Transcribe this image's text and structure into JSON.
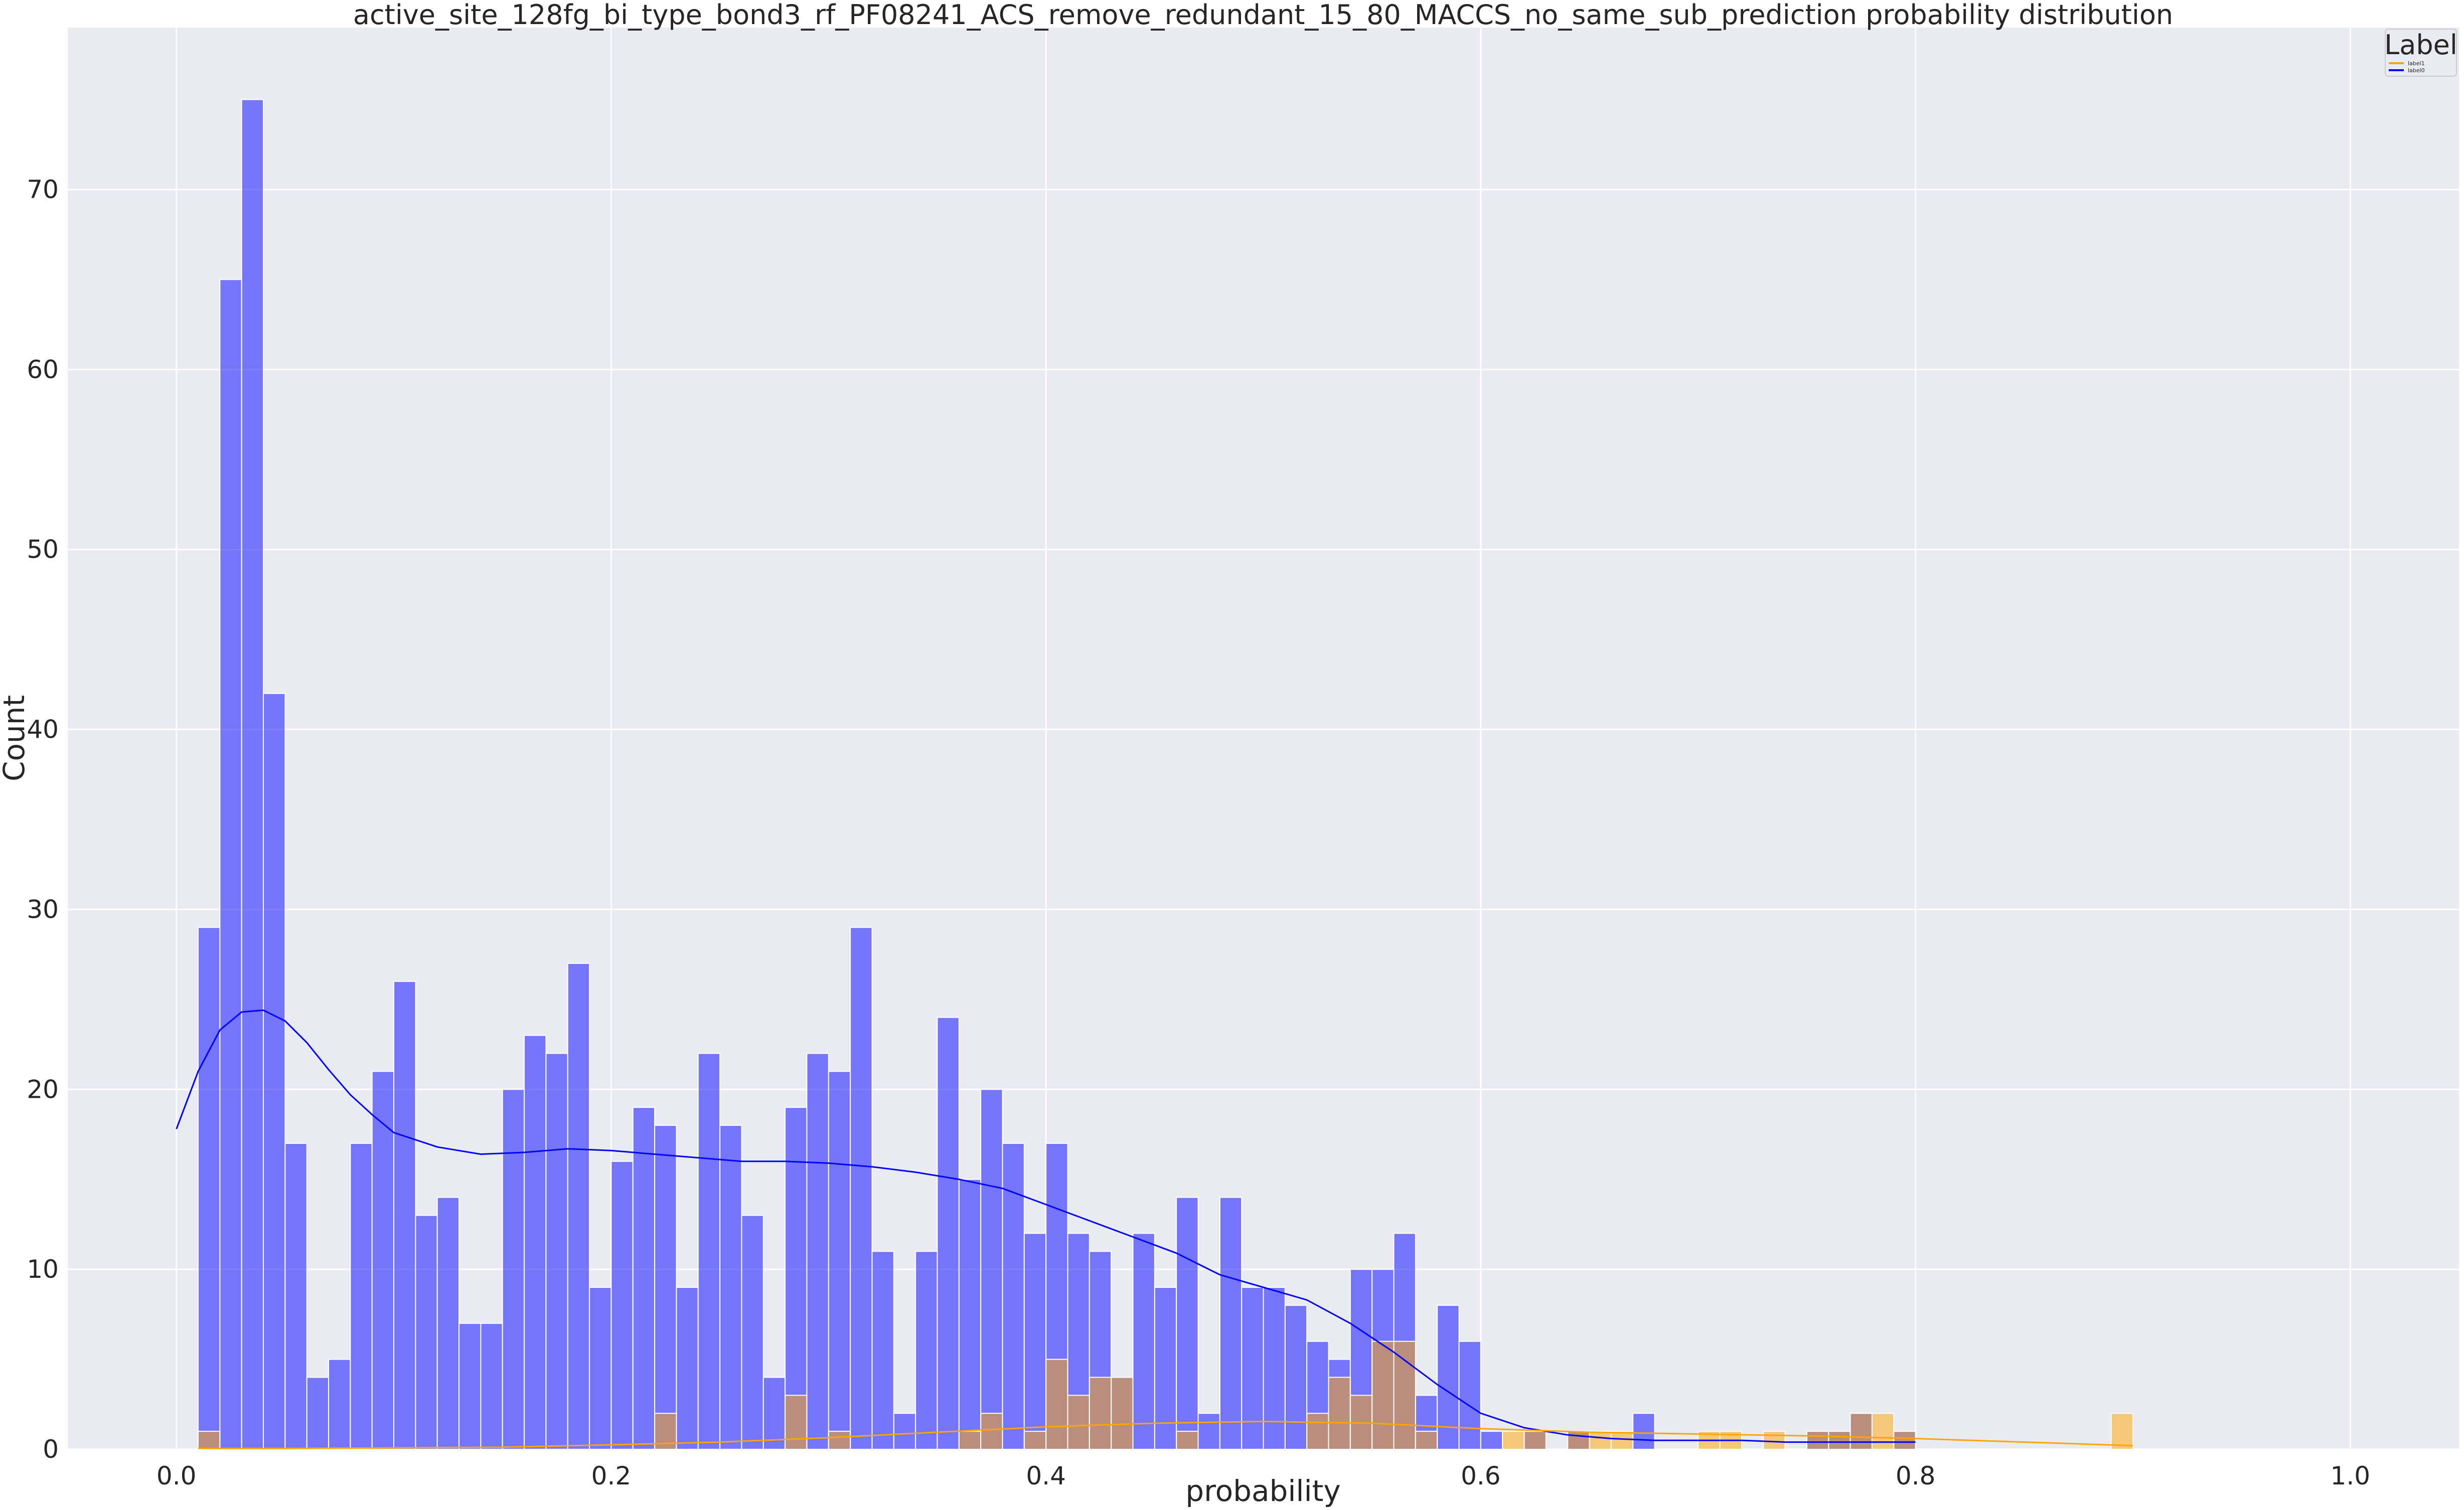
{
  "chart_data": {
    "type": "bar",
    "title": "active_site_128fg_bi_type_bond3_rf_PF08241_ACS_remove_redundant_15_80_MACCS_no_same_sub_prediction probability distribution",
    "xlabel": "probability",
    "ylabel": "Count",
    "xlim": [
      -0.05,
      1.05
    ],
    "ylim": [
      0,
      79
    ],
    "xticks": [
      0.0,
      0.2,
      0.4,
      0.6,
      0.8,
      1.0
    ],
    "xtick_labels": [
      "0.0",
      "0.2",
      "0.4",
      "0.6",
      "0.8",
      "1.0"
    ],
    "yticks": [
      0,
      10,
      20,
      30,
      40,
      50,
      60,
      70
    ],
    "ytick_labels": [
      "0",
      "10",
      "20",
      "30",
      "40",
      "50",
      "60",
      "70"
    ],
    "grid": true,
    "legend": {
      "title": "Label",
      "placement": "top-right",
      "entries": [
        "label1",
        "label0"
      ]
    },
    "bin_start": 0.01,
    "bin_width": 0.01,
    "series": [
      {
        "name": "label0",
        "color": "#0000ff",
        "opacity": 0.5,
        "values": [
          29,
          65,
          75,
          42,
          17,
          4,
          5,
          17,
          21,
          26,
          13,
          14,
          7,
          7,
          20,
          23,
          22,
          27,
          9,
          16,
          19,
          18,
          9,
          22,
          18,
          13,
          4,
          19,
          22,
          21,
          29,
          11,
          2,
          11,
          24,
          15,
          20,
          17,
          12,
          17,
          12,
          11,
          4,
          12,
          9,
          14,
          2,
          14,
          9,
          9,
          8,
          6,
          5,
          10,
          10,
          12,
          3,
          8,
          6,
          1,
          0,
          1,
          0,
          1,
          0,
          0,
          2,
          0,
          0,
          0,
          0,
          0,
          0,
          0,
          1,
          1,
          2,
          0,
          1
        ]
      },
      {
        "name": "label1",
        "color": "#ffa500",
        "opacity": 0.5,
        "values": [
          1,
          0,
          0,
          0,
          0,
          0,
          0,
          0,
          0,
          0,
          0,
          0,
          0,
          0,
          0,
          0,
          0,
          0,
          0,
          0,
          0,
          2,
          0,
          0,
          0,
          0,
          0,
          3,
          0,
          1,
          0,
          0,
          0,
          0,
          0,
          1,
          2,
          0,
          1,
          5,
          3,
          4,
          4,
          0,
          0,
          1,
          0,
          0,
          0,
          0,
          0,
          2,
          4,
          3,
          6,
          6,
          1,
          0,
          0,
          0,
          1,
          1,
          0,
          1,
          1,
          1,
          0,
          0,
          0,
          1,
          1,
          0,
          1,
          0,
          1,
          1,
          2,
          2,
          1,
          0,
          0,
          0,
          0,
          0,
          0,
          0,
          0,
          0,
          2
        ]
      }
    ],
    "kde": [
      {
        "name": "label0",
        "color": "#0000ff",
        "x": [
          0.0,
          0.01,
          0.02,
          0.03,
          0.04,
          0.05,
          0.06,
          0.07,
          0.08,
          0.09,
          0.1,
          0.12,
          0.14,
          0.16,
          0.18,
          0.2,
          0.22,
          0.24,
          0.26,
          0.28,
          0.3,
          0.32,
          0.34,
          0.36,
          0.38,
          0.4,
          0.42,
          0.44,
          0.46,
          0.48,
          0.5,
          0.52,
          0.54,
          0.56,
          0.58,
          0.6,
          0.62,
          0.64,
          0.66,
          0.68,
          0.7,
          0.72,
          0.74,
          0.76,
          0.78,
          0.8
        ],
        "y": [
          17.8,
          21.0,
          23.3,
          24.3,
          24.4,
          23.8,
          22.6,
          21.1,
          19.7,
          18.6,
          17.6,
          16.8,
          16.4,
          16.5,
          16.7,
          16.6,
          16.4,
          16.2,
          16.0,
          16.0,
          15.9,
          15.7,
          15.4,
          15.0,
          14.5,
          13.6,
          12.7,
          11.8,
          10.9,
          9.7,
          9.0,
          8.3,
          7.0,
          5.4,
          3.6,
          2.0,
          1.2,
          0.8,
          0.6,
          0.5,
          0.5,
          0.5,
          0.4,
          0.4,
          0.4,
          0.4
        ]
      },
      {
        "name": "label1",
        "color": "#ffa500",
        "x": [
          0.01,
          0.05,
          0.1,
          0.15,
          0.2,
          0.25,
          0.3,
          0.35,
          0.4,
          0.45,
          0.5,
          0.55,
          0.6,
          0.65,
          0.7,
          0.75,
          0.8,
          0.85,
          0.9
        ],
        "y": [
          0.05,
          0.05,
          0.08,
          0.12,
          0.25,
          0.4,
          0.65,
          0.95,
          1.25,
          1.45,
          1.55,
          1.45,
          1.15,
          0.95,
          0.85,
          0.75,
          0.6,
          0.4,
          0.2
        ]
      }
    ]
  }
}
